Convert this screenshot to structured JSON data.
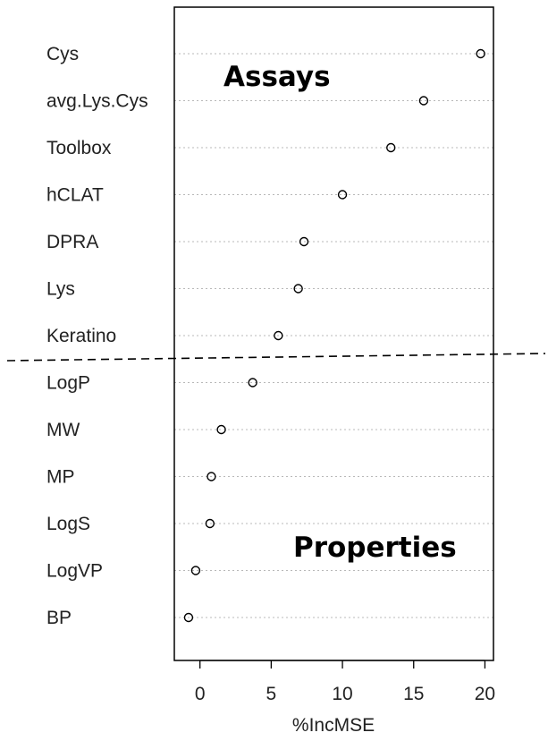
{
  "chart_data": {
    "type": "scatter",
    "xlabel": "%IncMSE",
    "xlim": [
      -1.8,
      20.6
    ],
    "xticks": [
      0,
      5,
      10,
      15,
      20
    ],
    "grid": "horizontal-dotted",
    "categories": [
      "Cys",
      "avg.Lys.Cys",
      "Toolbox",
      "hCLAT",
      "DPRA",
      "Lys",
      "Keratino",
      "LogP",
      "MW",
      "MP",
      "LogS",
      "LogVP",
      "BP"
    ],
    "values": [
      19.7,
      15.7,
      13.4,
      10.0,
      7.3,
      6.9,
      5.5,
      3.7,
      1.5,
      0.8,
      0.7,
      -0.3,
      -0.8
    ],
    "annotations": [
      {
        "text": "Assays",
        "group": "upper"
      },
      {
        "text": "Properties",
        "group": "lower"
      }
    ],
    "separator": {
      "style": "dashed",
      "between": [
        "Keratino",
        "LogP"
      ]
    }
  }
}
